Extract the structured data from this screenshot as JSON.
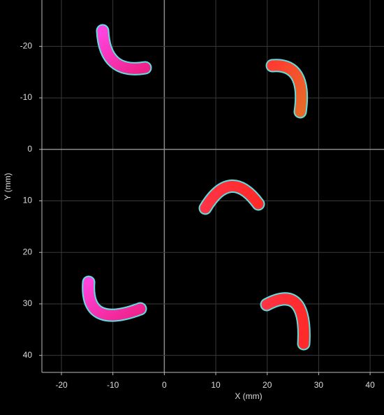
{
  "chart_data": {
    "type": "image",
    "x_label": "X (mm)",
    "y_label": "Y (mm)",
    "xlim": [
      -23.8,
      42.7
    ],
    "xticks": [
      -20,
      -10,
      0,
      10,
      20,
      30,
      40
    ],
    "ylim": [
      43.3,
      -29
    ],
    "yticks": [
      -20,
      -10,
      0,
      10,
      20,
      30,
      40
    ],
    "grid": true
  }
}
